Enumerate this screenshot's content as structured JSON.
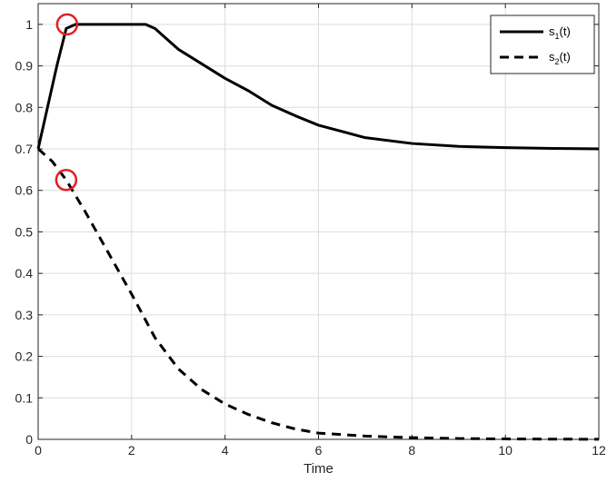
{
  "chart_data": {
    "type": "line",
    "xlabel": "Time",
    "ylabel": "",
    "title": "",
    "xlim": [
      0,
      12
    ],
    "ylim": [
      0,
      1.05
    ],
    "xticks": [
      "0",
      "2",
      "4",
      "6",
      "8",
      "10",
      "12"
    ],
    "yticks": [
      "0",
      "0.1",
      "0.2",
      "0.3",
      "0.4",
      "0.5",
      "0.6",
      "0.7",
      "0.8",
      "0.9",
      "1"
    ],
    "grid": true,
    "legend_position": "top-right",
    "series": [
      {
        "name": "s1(t)",
        "legend_base": "s",
        "legend_sub": "1",
        "legend_suffix": "(t)",
        "style": "solid",
        "color": "#000000",
        "x": [
          0,
          0.2,
          0.4,
          0.6,
          0.8,
          1.0,
          1.5,
          2.0,
          2.3,
          2.5,
          2.75,
          3.0,
          3.5,
          4.0,
          4.5,
          5.0,
          5.5,
          6.0,
          7.0,
          8.0,
          9.0,
          10.0,
          11.0,
          12.0
        ],
        "y": [
          0.7,
          0.8,
          0.9,
          0.99,
          1.0,
          1.0,
          1.0,
          1.0,
          1.0,
          0.99,
          0.965,
          0.94,
          0.905,
          0.87,
          0.84,
          0.805,
          0.78,
          0.757,
          0.727,
          0.713,
          0.706,
          0.703,
          0.701,
          0.7
        ]
      },
      {
        "name": "s2(t)",
        "legend_base": "s",
        "legend_sub": "2",
        "legend_suffix": "(t)",
        "style": "dashed",
        "color": "#000000",
        "x": [
          0,
          0.3,
          0.6,
          1.0,
          1.5,
          2.0,
          2.5,
          3.0,
          3.5,
          4.0,
          4.5,
          5.0,
          5.5,
          6.0,
          7.0,
          8.0,
          9.0,
          10.0,
          11.0,
          12.0
        ],
        "y": [
          0.7,
          0.67,
          0.625,
          0.55,
          0.45,
          0.35,
          0.245,
          0.17,
          0.12,
          0.085,
          0.06,
          0.04,
          0.025,
          0.015,
          0.008,
          0.004,
          0.002,
          0.001,
          0.0005,
          0.0003
        ]
      }
    ],
    "annotations": [
      {
        "type": "circle",
        "x": 0.62,
        "y": 1.0,
        "color": "#e02020"
      },
      {
        "type": "circle",
        "x": 0.6,
        "y": 0.625,
        "color": "#e02020"
      }
    ]
  }
}
